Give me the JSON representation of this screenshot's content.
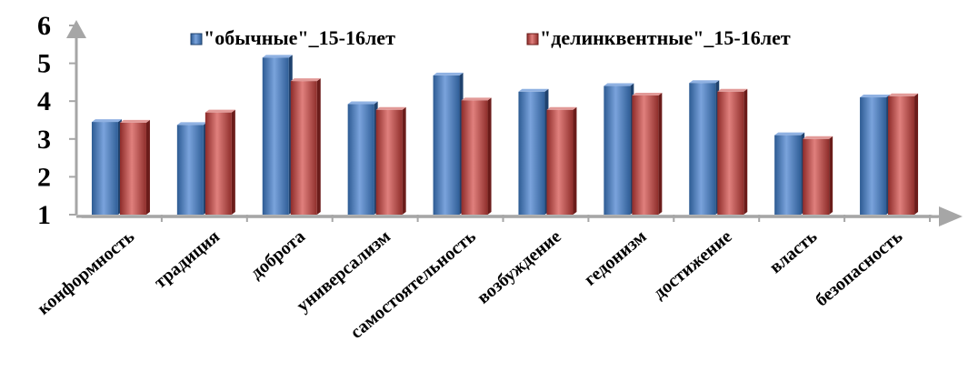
{
  "chart_data": {
    "type": "bar",
    "title": "",
    "xlabel": "",
    "ylabel": "",
    "ylim": [
      1,
      6
    ],
    "yticks": [
      "1",
      "2",
      "3",
      "4",
      "5",
      "6"
    ],
    "grid": false,
    "legend_position": "top",
    "categories": [
      "конформность",
      "традиция",
      "доброта",
      "универсализм",
      "самостоятельность",
      "возбуждение",
      "гедонизм",
      "достижение",
      "власть",
      "безопасность"
    ],
    "series": [
      {
        "name": "\"обычные\"_15-16лет",
        "color": "#4F81BD",
        "values": [
          3.45,
          3.37,
          5.15,
          3.92,
          4.68,
          4.25,
          4.4,
          4.48,
          3.1,
          4.1
        ]
      },
      {
        "name": "\"делинквентные\"_15-16лет",
        "color": "#C0504D",
        "values": [
          3.43,
          3.7,
          4.53,
          3.77,
          4.02,
          3.77,
          4.15,
          4.25,
          3.0,
          4.13
        ]
      }
    ]
  }
}
